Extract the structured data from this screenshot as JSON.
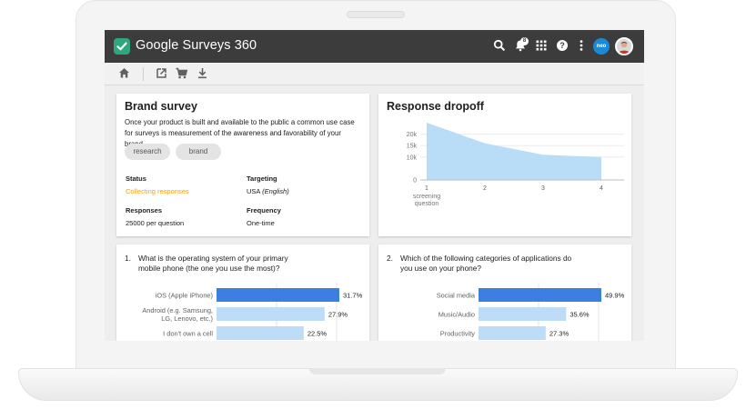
{
  "app": {
    "title": "Google Surveys 360",
    "notification_count": "8",
    "account_label": "neo",
    "accent": "#2ea77e"
  },
  "appbar_icons": [
    "search-icon",
    "notifications-icon",
    "apps-grid-icon",
    "help-icon",
    "more-vert-icon"
  ],
  "toolbar_icons": [
    "home-icon",
    "open-in-new-icon",
    "cart-icon",
    "download-icon"
  ],
  "survey": {
    "title": "Brand survey",
    "description": "Once your product is built and available to the public a common use case for surveys is measurement of the awareness and favorability of your brand.",
    "tags": [
      "research",
      "brand"
    ],
    "status_label": "Status",
    "status_value": "Collecting responses",
    "status_color": "#f5a015",
    "targeting_label": "Targeting",
    "targeting_country": "USA",
    "targeting_language": "(English)",
    "responses_label": "Responses",
    "responses_value": "25000 per question",
    "frequency_label": "Frequency",
    "frequency_value": "One-time"
  },
  "dropoff": {
    "title": "Response dropoff",
    "chart_data": {
      "type": "area",
      "x": [
        1,
        2,
        3,
        4
      ],
      "x_tick_labels": [
        "1",
        "2",
        "3",
        "4"
      ],
      "x_first_sublabel": "screening question",
      "y": [
        25000,
        16000,
        11000,
        10000
      ],
      "y_ticks": [
        "20k",
        "15k",
        "10k",
        "0"
      ],
      "ylim": [
        0,
        25000
      ],
      "color": "#b9dcf7"
    }
  },
  "question1": {
    "number": "1.",
    "text_line1": "What is the operating system of your primary",
    "text_line2": "mobile phone (the one you use the most)?",
    "chart_data": {
      "type": "bar",
      "orientation": "horizontal",
      "categories": [
        "iOS (Apple iPhone)",
        "Android (e.g. Samsung, LG, Lenovo, etc.)",
        "I don't own a cell"
      ],
      "category_lines": [
        [
          "iOS (Apple iPhone)"
        ],
        [
          "Android (e.g. Samsung,",
          "LG, Lenovo, etc.)"
        ],
        [
          "I don't own a cell"
        ]
      ],
      "values": [
        31.7,
        27.9,
        22.5
      ],
      "value_labels": [
        "31.7%",
        "27.9%",
        "22.5%"
      ],
      "highlight_color": "#3c7fe0",
      "bar_color": "#bcdcf8"
    }
  },
  "question2": {
    "number": "2.",
    "text_line1": "Which of the following categories of applications do",
    "text_line2": "you use on your phone?",
    "chart_data": {
      "type": "bar",
      "orientation": "horizontal",
      "categories": [
        "Social media",
        "Music/Audio",
        "Productivity"
      ],
      "category_lines": [
        [
          "Social media"
        ],
        [
          "Music/Audio"
        ],
        [
          "Productivity"
        ]
      ],
      "values": [
        49.9,
        35.6,
        27.3
      ],
      "value_labels": [
        "49.9%",
        "35.6%",
        "27.3%"
      ],
      "highlight_color": "#3c7fe0",
      "bar_color": "#bcdcf8"
    }
  }
}
